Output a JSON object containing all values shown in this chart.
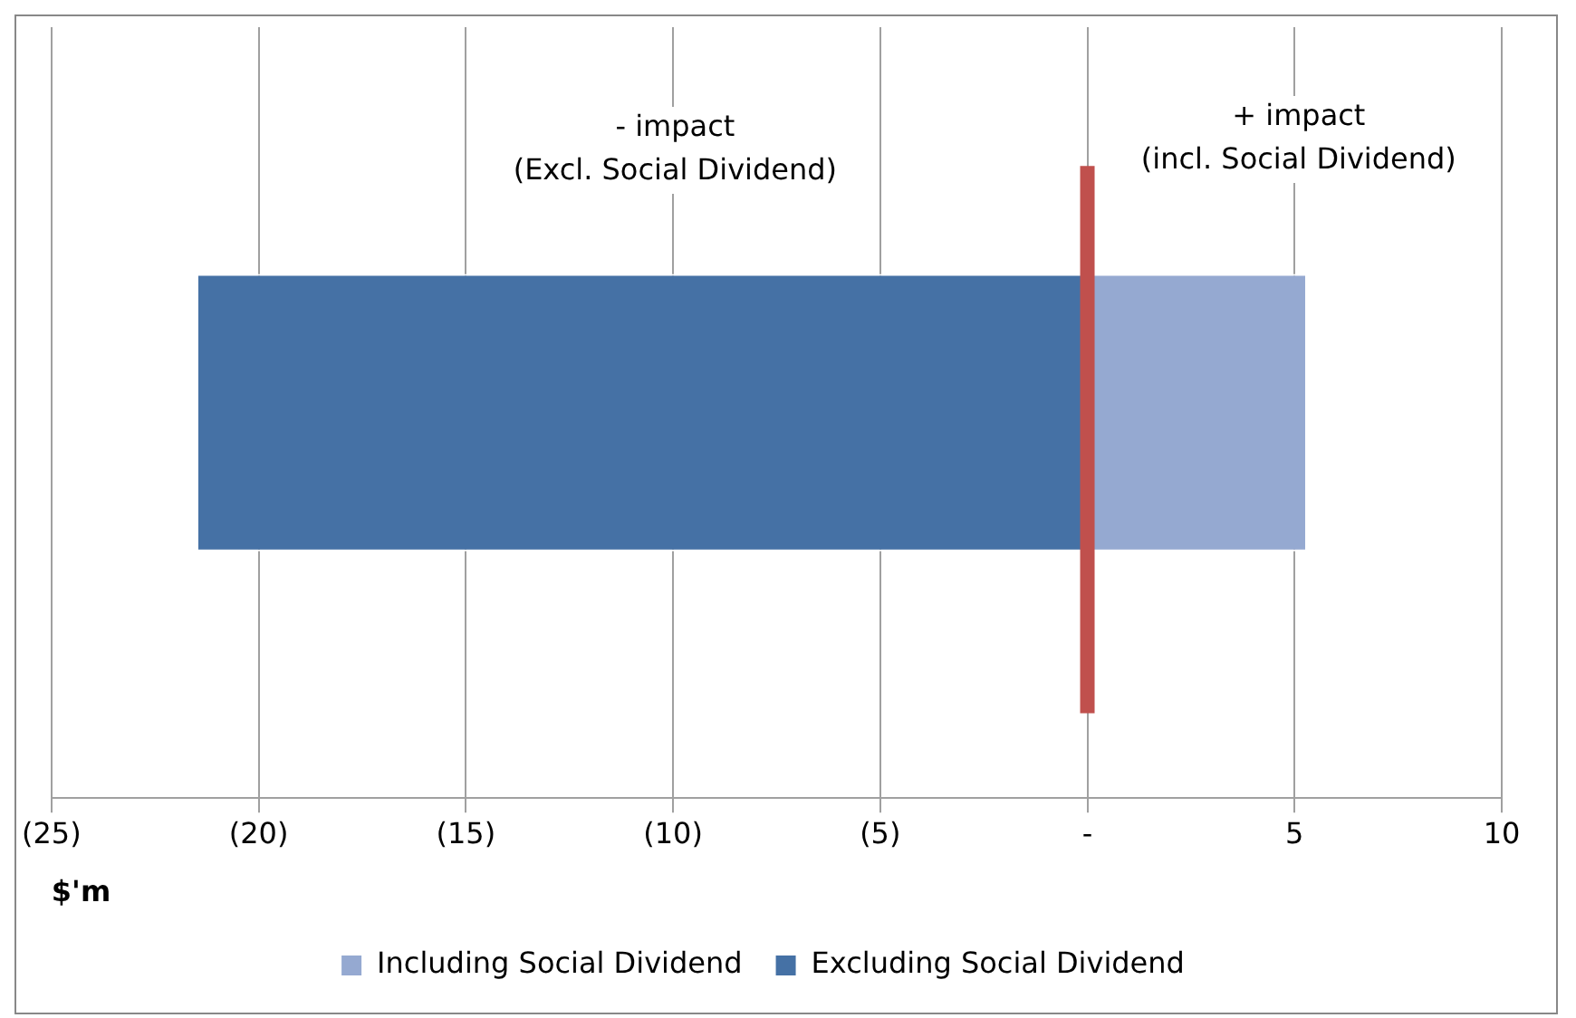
{
  "chart_data": {
    "type": "bar",
    "orientation": "horizontal",
    "stacked": true,
    "categories": [
      null
    ],
    "series": [
      {
        "name": "Including Social Dividend",
        "color": "#95a9d1",
        "values": [
          5.3
        ]
      },
      {
        "name": "Excluding Social Dividend",
        "color": "#4571a5",
        "values": [
          -21.5
        ]
      }
    ],
    "xlim": [
      -25,
      10
    ],
    "xticks": [
      {
        "value": -25,
        "label": "(25)"
      },
      {
        "value": -20,
        "label": "(20)"
      },
      {
        "value": -15,
        "label": "(15)"
      },
      {
        "value": -10,
        "label": "(10)"
      },
      {
        "value": -5,
        "label": "(5)"
      },
      {
        "value": 0,
        "label": "-"
      },
      5,
      10
    ],
    "xlabel": "$'m",
    "grid": "x",
    "legend": "bottom",
    "ref_lines": [
      {
        "axis": "x",
        "value": 0,
        "color": "#c0504d"
      }
    ],
    "annotations": [
      "- impact\n(Excl. Social Dividend)",
      "+ impact\n(incl. Social Dividend)"
    ]
  }
}
